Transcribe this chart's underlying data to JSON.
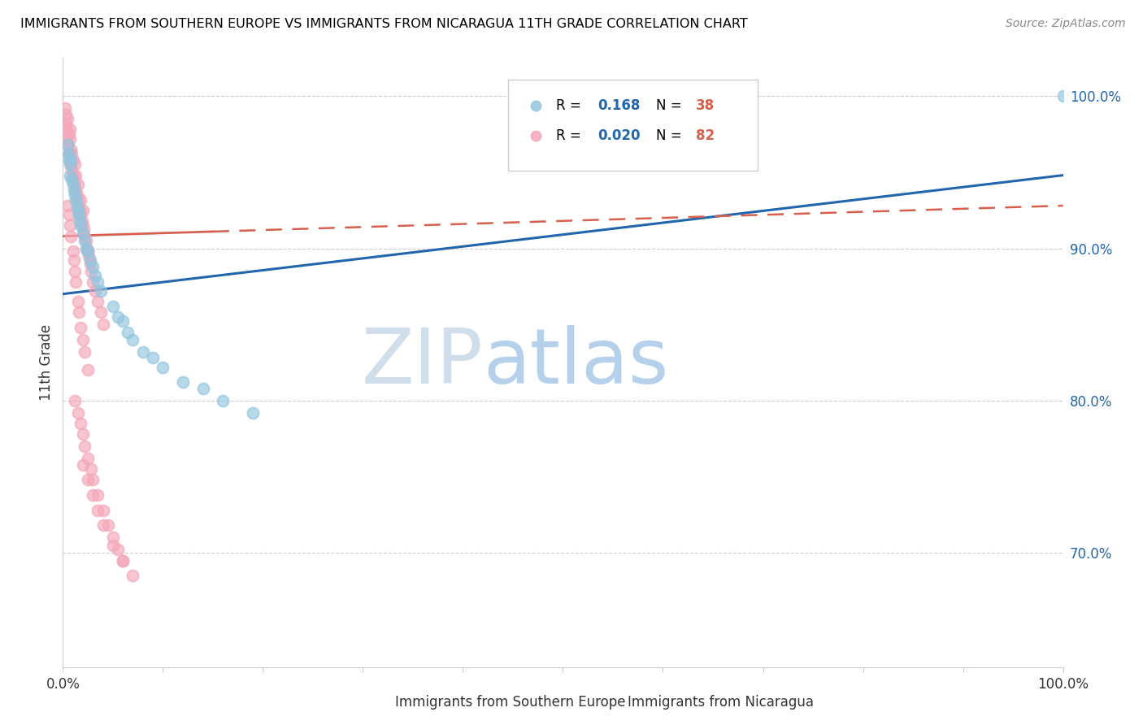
{
  "title": "IMMIGRANTS FROM SOUTHERN EUROPE VS IMMIGRANTS FROM NICARAGUA 11TH GRADE CORRELATION CHART",
  "source_text": "Source: ZipAtlas.com",
  "ylabel": "11th Grade",
  "xlim": [
    0.0,
    1.0
  ],
  "ylim": [
    0.625,
    1.025
  ],
  "ytick_values": [
    0.7,
    0.8,
    0.9,
    1.0
  ],
  "ytick_labels": [
    "70.0%",
    "80.0%",
    "90.0%",
    "100.0%"
  ],
  "legend_r_blue": "0.168",
  "legend_n_blue": "38",
  "legend_r_pink": "0.020",
  "legend_n_pink": "82",
  "legend_label_blue": "Immigrants from Southern Europe",
  "legend_label_pink": "Immigrants from Nicaragua",
  "watermark_zip": "ZIP",
  "watermark_atlas": "atlas",
  "blue_color": "#92c5de",
  "pink_color": "#f4a6b8",
  "trendline_blue_color": "#2166ac",
  "trendline_pink_color": "#d6604d",
  "blue_scatter_x": [
    0.004,
    0.005,
    0.006,
    0.007,
    0.007,
    0.008,
    0.009,
    0.01,
    0.011,
    0.012,
    0.013,
    0.014,
    0.015,
    0.016,
    0.017,
    0.018,
    0.02,
    0.022,
    0.023,
    0.025,
    0.027,
    0.03,
    0.032,
    0.035,
    0.038,
    0.05,
    0.055,
    0.06,
    0.065,
    0.07,
    0.08,
    0.09,
    0.1,
    0.12,
    0.14,
    0.16,
    0.19,
    1.0
  ],
  "blue_scatter_y": [
    0.96,
    0.968,
    0.962,
    0.955,
    0.948,
    0.958,
    0.945,
    0.942,
    0.938,
    0.935,
    0.932,
    0.928,
    0.925,
    0.922,
    0.918,
    0.915,
    0.91,
    0.905,
    0.9,
    0.898,
    0.892,
    0.888,
    0.882,
    0.878,
    0.872,
    0.862,
    0.855,
    0.852,
    0.845,
    0.84,
    0.832,
    0.828,
    0.822,
    0.812,
    0.808,
    0.8,
    0.792,
    1.0
  ],
  "pink_scatter_x": [
    0.002,
    0.003,
    0.003,
    0.004,
    0.004,
    0.005,
    0.005,
    0.006,
    0.006,
    0.007,
    0.007,
    0.007,
    0.008,
    0.008,
    0.009,
    0.009,
    0.01,
    0.01,
    0.011,
    0.012,
    0.012,
    0.013,
    0.013,
    0.014,
    0.015,
    0.015,
    0.016,
    0.017,
    0.018,
    0.018,
    0.019,
    0.02,
    0.02,
    0.021,
    0.022,
    0.023,
    0.024,
    0.025,
    0.026,
    0.027,
    0.028,
    0.03,
    0.032,
    0.035,
    0.038,
    0.04,
    0.005,
    0.006,
    0.007,
    0.008,
    0.01,
    0.011,
    0.012,
    0.013,
    0.015,
    0.016,
    0.018,
    0.02,
    0.022,
    0.025,
    0.012,
    0.015,
    0.018,
    0.02,
    0.022,
    0.025,
    0.028,
    0.03,
    0.035,
    0.04,
    0.045,
    0.05,
    0.055,
    0.06,
    0.02,
    0.025,
    0.03,
    0.035,
    0.04,
    0.05,
    0.06,
    0.07
  ],
  "pink_scatter_y": [
    0.992,
    0.988,
    0.982,
    0.978,
    0.972,
    0.985,
    0.968,
    0.975,
    0.962,
    0.978,
    0.958,
    0.972,
    0.955,
    0.965,
    0.952,
    0.962,
    0.948,
    0.958,
    0.945,
    0.942,
    0.955,
    0.938,
    0.948,
    0.935,
    0.932,
    0.942,
    0.928,
    0.925,
    0.922,
    0.932,
    0.918,
    0.915,
    0.925,
    0.912,
    0.908,
    0.905,
    0.9,
    0.898,
    0.895,
    0.89,
    0.885,
    0.878,
    0.872,
    0.865,
    0.858,
    0.85,
    0.928,
    0.922,
    0.915,
    0.908,
    0.898,
    0.892,
    0.885,
    0.878,
    0.865,
    0.858,
    0.848,
    0.84,
    0.832,
    0.82,
    0.8,
    0.792,
    0.785,
    0.778,
    0.77,
    0.762,
    0.755,
    0.748,
    0.738,
    0.728,
    0.718,
    0.71,
    0.702,
    0.695,
    0.758,
    0.748,
    0.738,
    0.728,
    0.718,
    0.705,
    0.695,
    0.685
  ],
  "blue_trend_x0": 0.0,
  "blue_trend_y0": 0.87,
  "blue_trend_x1": 1.0,
  "blue_trend_y1": 0.948,
  "pink_trend_x0": 0.0,
  "pink_trend_y0": 0.908,
  "pink_trend_x1": 1.0,
  "pink_trend_y1": 0.928
}
